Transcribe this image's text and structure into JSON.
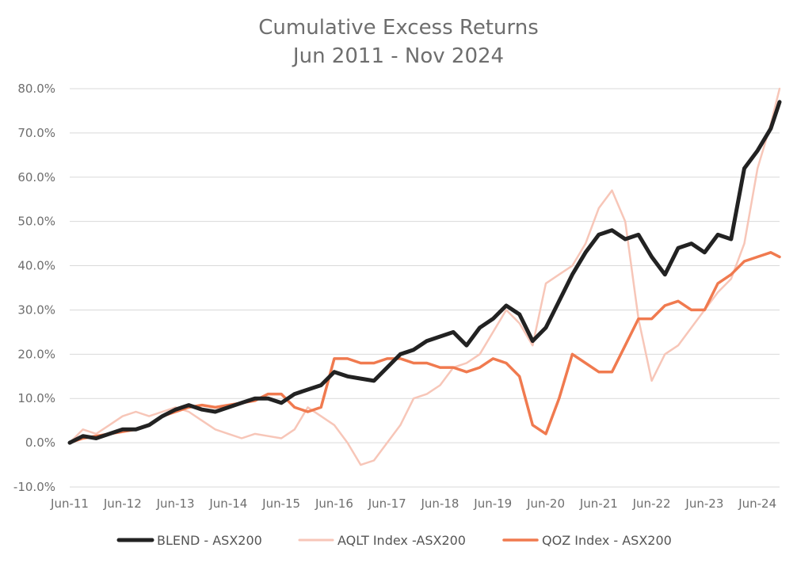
{
  "chart_data": {
    "type": "line",
    "title": "Cumulative Excess Returns",
    "subtitle": "Jun 2011 - Nov 2024",
    "xlabel": "",
    "ylabel": "",
    "x_ticks": [
      "Jun-11",
      "Jun-12",
      "Jun-13",
      "Jun-14",
      "Jun-15",
      "Jun-16",
      "Jun-17",
      "Jun-18",
      "Jun-19",
      "Jun-20",
      "Jun-21",
      "Jun-22",
      "Jun-23",
      "Jun-24"
    ],
    "y_ticks": [
      "80.0%",
      "70.0%",
      "60.0%",
      "50.0%",
      "40.0%",
      "30.0%",
      "20.0%",
      "10.0%",
      "0.0%",
      "-10.0%"
    ],
    "xlim": [
      "2011-06",
      "2024-11"
    ],
    "ylim": [
      -10,
      80
    ],
    "grid": "horizontal",
    "legend_position": "bottom",
    "series": [
      {
        "name": "BLEND - ASX200",
        "color": "#222222",
        "x": [
          "2011-06",
          "2011-09",
          "2011-12",
          "2012-03",
          "2012-06",
          "2012-09",
          "2012-12",
          "2013-03",
          "2013-06",
          "2013-09",
          "2013-12",
          "2014-03",
          "2014-06",
          "2014-09",
          "2014-12",
          "2015-03",
          "2015-06",
          "2015-09",
          "2015-12",
          "2016-03",
          "2016-06",
          "2016-09",
          "2016-12",
          "2017-03",
          "2017-06",
          "2017-09",
          "2017-12",
          "2018-03",
          "2018-06",
          "2018-09",
          "2018-12",
          "2019-03",
          "2019-06",
          "2019-09",
          "2019-12",
          "2020-03",
          "2020-06",
          "2020-09",
          "2020-12",
          "2021-03",
          "2021-06",
          "2021-09",
          "2021-12",
          "2022-03",
          "2022-06",
          "2022-09",
          "2022-12",
          "2023-03",
          "2023-06",
          "2023-09",
          "2023-12",
          "2024-03",
          "2024-06",
          "2024-09",
          "2024-11"
        ],
        "values": [
          0,
          1.5,
          1,
          2,
          3,
          3,
          4,
          6,
          7.5,
          8.5,
          7.5,
          7,
          8,
          9,
          10,
          10,
          9,
          11,
          12,
          13,
          16,
          15,
          14.5,
          14,
          17,
          20,
          21,
          23,
          24,
          25,
          22,
          26,
          28,
          31,
          29,
          23,
          26,
          32,
          38,
          43,
          47,
          48,
          46,
          47,
          42,
          38,
          44,
          45,
          43,
          47,
          46,
          62,
          66,
          71,
          77
        ],
        "width": 5
      },
      {
        "name": "AQLT Index -ASX200",
        "color": "#f7c6b8",
        "x": [
          "2011-06",
          "2011-09",
          "2011-12",
          "2012-03",
          "2012-06",
          "2012-09",
          "2012-12",
          "2013-03",
          "2013-06",
          "2013-09",
          "2013-12",
          "2014-03",
          "2014-06",
          "2014-09",
          "2014-12",
          "2015-03",
          "2015-06",
          "2015-09",
          "2015-12",
          "2016-03",
          "2016-06",
          "2016-09",
          "2016-12",
          "2017-03",
          "2017-06",
          "2017-09",
          "2017-12",
          "2018-03",
          "2018-06",
          "2018-09",
          "2018-12",
          "2019-03",
          "2019-06",
          "2019-09",
          "2019-12",
          "2020-03",
          "2020-06",
          "2020-09",
          "2020-12",
          "2021-03",
          "2021-06",
          "2021-09",
          "2021-12",
          "2022-03",
          "2022-06",
          "2022-09",
          "2022-12",
          "2023-03",
          "2023-06",
          "2023-09",
          "2023-12",
          "2024-03",
          "2024-06",
          "2024-09",
          "2024-11"
        ],
        "values": [
          0,
          3,
          2,
          4,
          6,
          7,
          6,
          7,
          8,
          7,
          5,
          3,
          2,
          1,
          2,
          1.5,
          1,
          3,
          8,
          6,
          4,
          0,
          -5,
          -4,
          0,
          4,
          10,
          11,
          13,
          17,
          18,
          20,
          25,
          30,
          27,
          22,
          36,
          38,
          40,
          45,
          53,
          57,
          50,
          28,
          14,
          20,
          22,
          26,
          30,
          34,
          37,
          45,
          62,
          72,
          80
        ],
        "width": 2.5
      },
      {
        "name": "QOZ Index - ASX200",
        "color": "#f07a4f",
        "x": [
          "2011-06",
          "2011-09",
          "2011-12",
          "2012-03",
          "2012-06",
          "2012-09",
          "2012-12",
          "2013-03",
          "2013-06",
          "2013-09",
          "2013-12",
          "2014-03",
          "2014-06",
          "2014-09",
          "2014-12",
          "2015-03",
          "2015-06",
          "2015-09",
          "2015-12",
          "2016-03",
          "2016-06",
          "2016-09",
          "2016-12",
          "2017-03",
          "2017-06",
          "2017-09",
          "2017-12",
          "2018-03",
          "2018-06",
          "2018-09",
          "2018-12",
          "2019-03",
          "2019-06",
          "2019-09",
          "2019-12",
          "2020-03",
          "2020-06",
          "2020-09",
          "2020-12",
          "2021-03",
          "2021-06",
          "2021-09",
          "2021-12",
          "2022-03",
          "2022-06",
          "2022-09",
          "2022-12",
          "2023-03",
          "2023-06",
          "2023-09",
          "2023-12",
          "2024-03",
          "2024-06",
          "2024-09",
          "2024-11"
        ],
        "values": [
          0,
          1,
          1.5,
          2,
          2.5,
          3,
          4,
          6,
          7,
          8,
          8.5,
          8,
          8.5,
          9,
          9.5,
          11,
          11,
          8,
          7,
          8,
          19,
          19,
          18,
          18,
          19,
          19,
          18,
          18,
          17,
          17,
          16,
          17,
          19,
          18,
          15,
          4,
          2,
          10,
          20,
          18,
          16,
          16,
          22,
          28,
          28,
          31,
          32,
          30,
          30,
          36,
          38,
          41,
          42,
          43,
          42
        ],
        "width": 3.5
      }
    ]
  }
}
